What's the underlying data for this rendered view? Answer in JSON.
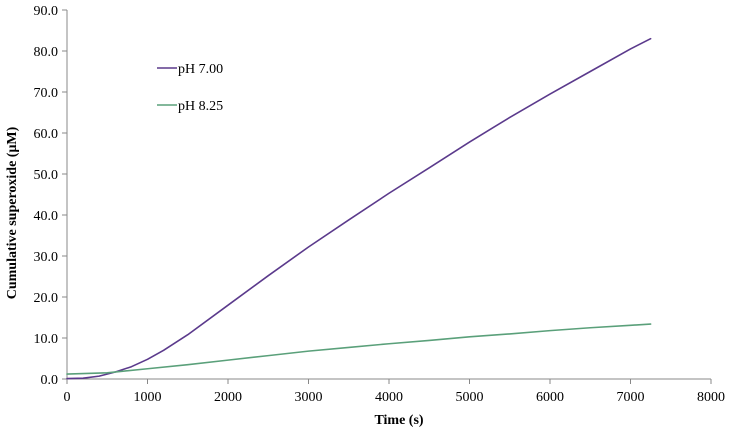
{
  "chart_data": {
    "type": "line",
    "title": "",
    "xlabel": "Time (s)",
    "ylabel": "Cumulative superoxide (μM)",
    "xlim": [
      0,
      8000
    ],
    "ylim": [
      0,
      90
    ],
    "x_ticks": [
      0,
      1000,
      2000,
      3000,
      4000,
      5000,
      6000,
      7000,
      8000
    ],
    "x_tick_labels": [
      "0",
      "1000",
      "2000",
      "3000",
      "4000",
      "5000",
      "6000",
      "7000",
      "8000"
    ],
    "y_ticks": [
      0,
      10,
      20,
      30,
      40,
      50,
      60,
      70,
      80,
      90
    ],
    "y_tick_labels": [
      "0.0",
      "10.0",
      "20.0",
      "30.0",
      "40.0",
      "50.0",
      "60.0",
      "70.0",
      "80.0",
      "90.0"
    ],
    "grid": false,
    "legend_position": "upper-left",
    "series": [
      {
        "name": "pH 7.00",
        "color": "#5b3a8c",
        "x": [
          0,
          200,
          400,
          600,
          800,
          1000,
          1200,
          1500,
          2000,
          2500,
          3000,
          3500,
          4000,
          4500,
          5000,
          5500,
          6000,
          6500,
          7000,
          7250
        ],
        "y": [
          0.1,
          0.2,
          0.7,
          1.7,
          3.0,
          4.8,
          7.0,
          10.8,
          18.0,
          25.2,
          32.2,
          38.8,
          45.3,
          51.5,
          57.8,
          63.8,
          69.5,
          75.0,
          80.5,
          83.0
        ]
      },
      {
        "name": "pH 8.25",
        "color": "#5aa07a",
        "x": [
          0,
          500,
          1000,
          1500,
          2000,
          2500,
          3000,
          3500,
          4000,
          4500,
          5000,
          5500,
          6000,
          6500,
          7000,
          7250
        ],
        "y": [
          1.2,
          1.5,
          2.5,
          3.5,
          4.6,
          5.7,
          6.8,
          7.7,
          8.6,
          9.4,
          10.3,
          11.0,
          11.8,
          12.5,
          13.1,
          13.4
        ]
      }
    ]
  }
}
